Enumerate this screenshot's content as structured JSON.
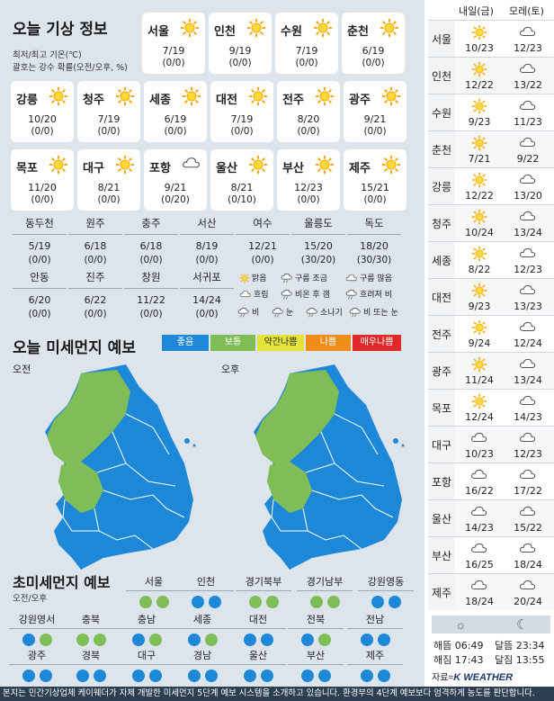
{
  "title": "오늘 기상 정보",
  "subnote1": "최저/최고 기온(℃)",
  "subnote2": "괄호는 강수 확률(오전/오후, %)",
  "main_cities": [
    {
      "name": "서울",
      "icon": "sun",
      "temp": "7/19",
      "rain": "(0/0)"
    },
    {
      "name": "인천",
      "icon": "sun",
      "temp": "9/19",
      "rain": "(0/0)"
    },
    {
      "name": "수원",
      "icon": "sun",
      "temp": "7/19",
      "rain": "(0/0)"
    },
    {
      "name": "춘천",
      "icon": "sun",
      "temp": "6/19",
      "rain": "(0/0)"
    },
    {
      "name": "강릉",
      "icon": "sun",
      "temp": "10/20",
      "rain": "(0/0)"
    },
    {
      "name": "청주",
      "icon": "sun",
      "temp": "7/19",
      "rain": "(0/0)"
    },
    {
      "name": "세종",
      "icon": "sun",
      "temp": "6/19",
      "rain": "(0/0)"
    },
    {
      "name": "대전",
      "icon": "sun",
      "temp": "7/19",
      "rain": "(0/0)"
    },
    {
      "name": "전주",
      "icon": "sun",
      "temp": "8/20",
      "rain": "(0/0)"
    },
    {
      "name": "광주",
      "icon": "sun",
      "temp": "9/21",
      "rain": "(0/0)"
    },
    {
      "name": "목포",
      "icon": "sun",
      "temp": "11/20",
      "rain": "(0/0)"
    },
    {
      "name": "대구",
      "icon": "sun",
      "temp": "8/21",
      "rain": "(0/0)"
    },
    {
      "name": "포항",
      "icon": "cloud",
      "temp": "9/21",
      "rain": "(0/20)"
    },
    {
      "name": "울산",
      "icon": "sun",
      "temp": "8/21",
      "rain": "(0/10)"
    },
    {
      "name": "부산",
      "icon": "sun",
      "temp": "12/23",
      "rain": "(0/0)"
    },
    {
      "name": "제주",
      "icon": "sun",
      "temp": "15/21",
      "rain": "(0/0)"
    }
  ],
  "small_cities": [
    {
      "name": "동두천",
      "temp": "5/19",
      "rain": "(0/0)"
    },
    {
      "name": "원주",
      "temp": "6/18",
      "rain": "(0/0)"
    },
    {
      "name": "충주",
      "temp": "6/18",
      "rain": "(0/0)"
    },
    {
      "name": "서산",
      "temp": "8/19",
      "rain": "(0/0)"
    },
    {
      "name": "여수",
      "temp": "12/21",
      "rain": "(0/0)"
    },
    {
      "name": "울릉도",
      "temp": "15/20",
      "rain": "(30/20)"
    },
    {
      "name": "독도",
      "temp": "18/20",
      "rain": "(30/30)"
    },
    {
      "name": "안동",
      "temp": "6/20",
      "rain": "(0/0)"
    },
    {
      "name": "진주",
      "temp": "6/22",
      "rain": "(0/0)"
    },
    {
      "name": "창원",
      "temp": "11/22",
      "rain": "(0/0)"
    },
    {
      "name": "서귀포",
      "temp": "14/24",
      "rain": "(0/0)"
    }
  ],
  "weather_legend": [
    {
      "icon": "sun",
      "label": "맑음"
    },
    {
      "icon": "suncloud",
      "label": "구름 조금"
    },
    {
      "icon": "cloud",
      "label": "구름 많음"
    },
    {
      "icon": "cloud",
      "label": "흐림"
    },
    {
      "icon": "rainclear",
      "label": "비온 후 갬"
    },
    {
      "icon": "cloudrain",
      "label": "흐려져 비"
    },
    {
      "icon": "rain",
      "label": "비"
    },
    {
      "icon": "snow",
      "label": "눈"
    },
    {
      "icon": "shower",
      "label": "소나기"
    },
    {
      "icon": "rainsnow",
      "label": "비 또는 눈"
    }
  ],
  "pm_title": "오늘 미세먼지 예보",
  "pm_legend": [
    {
      "label": "좋음",
      "color": "#1e88d8"
    },
    {
      "label": "보통",
      "color": "#7fbd57"
    },
    {
      "label": "약간나쁨",
      "color": "#e3e33a"
    },
    {
      "label": "나쁨",
      "color": "#f08c1a"
    },
    {
      "label": "매우나쁨",
      "color": "#e02a2a"
    }
  ],
  "am_label": "오전",
  "pm_label": "오후",
  "ultra_title": "초미세먼지 예보",
  "ultra_sub": "오전/오후",
  "ultra_cities": [
    {
      "name": "서울",
      "am": "g",
      "pm": "g"
    },
    {
      "name": "인천",
      "am": "b",
      "pm": "b"
    },
    {
      "name": "경기북부",
      "am": "g",
      "pm": "g"
    },
    {
      "name": "경기남부",
      "am": "g",
      "pm": "g"
    },
    {
      "name": "강원영동",
      "am": "b",
      "pm": "b"
    },
    {
      "name": "강원영서",
      "am": "b",
      "pm": "g"
    },
    {
      "name": "충북",
      "am": "g",
      "pm": "g"
    },
    {
      "name": "충남",
      "am": "b",
      "pm": "g"
    },
    {
      "name": "세종",
      "am": "b",
      "pm": "g"
    },
    {
      "name": "대전",
      "am": "b",
      "pm": "b"
    },
    {
      "name": "전북",
      "am": "b",
      "pm": "g"
    },
    {
      "name": "전남",
      "am": "b",
      "pm": "b"
    },
    {
      "name": "광주",
      "am": "b",
      "pm": "b"
    },
    {
      "name": "경북",
      "am": "b",
      "pm": "b"
    },
    {
      "name": "대구",
      "am": "b",
      "pm": "b"
    },
    {
      "name": "경남",
      "am": "b",
      "pm": "b"
    },
    {
      "name": "울산",
      "am": "b",
      "pm": "b"
    },
    {
      "name": "부산",
      "am": "b",
      "pm": "b"
    },
    {
      "name": "제주",
      "am": "b",
      "pm": "b"
    }
  ],
  "forecast_head_tomorrow": "내일(금)",
  "forecast_head_dayafter": "모레(토)",
  "forecast": [
    {
      "city": "서울",
      "t1_icon": "sun",
      "t1": "10/23",
      "t2_icon": "cloud",
      "t2": "12/23"
    },
    {
      "city": "인천",
      "t1_icon": "sun",
      "t1": "12/22",
      "t2_icon": "cloud",
      "t2": "13/22"
    },
    {
      "city": "수원",
      "t1_icon": "sun",
      "t1": "9/23",
      "t2_icon": "cloud",
      "t2": "11/23"
    },
    {
      "city": "춘천",
      "t1_icon": "sun",
      "t1": "7/21",
      "t2_icon": "cloud",
      "t2": "9/22"
    },
    {
      "city": "강릉",
      "t1_icon": "sun",
      "t1": "12/22",
      "t2_icon": "cloud",
      "t2": "13/20"
    },
    {
      "city": "청주",
      "t1_icon": "sun",
      "t1": "10/24",
      "t2_icon": "cloud",
      "t2": "13/24"
    },
    {
      "city": "세종",
      "t1_icon": "sun",
      "t1": "8/22",
      "t2_icon": "cloud",
      "t2": "12/23"
    },
    {
      "city": "대전",
      "t1_icon": "sun",
      "t1": "9/23",
      "t2_icon": "cloud",
      "t2": "13/23"
    },
    {
      "city": "전주",
      "t1_icon": "sun",
      "t1": "9/24",
      "t2_icon": "cloud",
      "t2": "12/24"
    },
    {
      "city": "광주",
      "t1_icon": "sun",
      "t1": "11/24",
      "t2_icon": "cloud",
      "t2": "13/24"
    },
    {
      "city": "목포",
      "t1_icon": "sun",
      "t1": "12/24",
      "t2_icon": "cloud",
      "t2": "14/23"
    },
    {
      "city": "대구",
      "t1_icon": "cloud",
      "t1": "10/23",
      "t2_icon": "cloud",
      "t2": "12/23"
    },
    {
      "city": "포항",
      "t1_icon": "cloud",
      "t1": "16/22",
      "t2_icon": "cloud",
      "t2": "17/22"
    },
    {
      "city": "울산",
      "t1_icon": "cloud",
      "t1": "14/23",
      "t2_icon": "cloud",
      "t2": "15/22"
    },
    {
      "city": "부산",
      "t1_icon": "cloud",
      "t1": "16/25",
      "t2_icon": "cloud",
      "t2": "18/24"
    },
    {
      "city": "제주",
      "t1_icon": "cloud",
      "t1": "18/24",
      "t2_icon": "cloud",
      "t2": "20/24"
    }
  ],
  "sunrise": "해뜸 06:49",
  "sunset": "해짐 17:43",
  "moonrise": "달뜸 23:34",
  "moonset": "달짐 13:55",
  "source_prefix": "자료=",
  "source_logo": "K WEATHER",
  "footer": "본지는 민간기상업체 케이웨더가 자체 개발한 미세먼지 5단계 예보 시스템을 소개하고 있습니다. 환경부의 4단계 예보보다 엄격하게 농도를 판단합니다."
}
